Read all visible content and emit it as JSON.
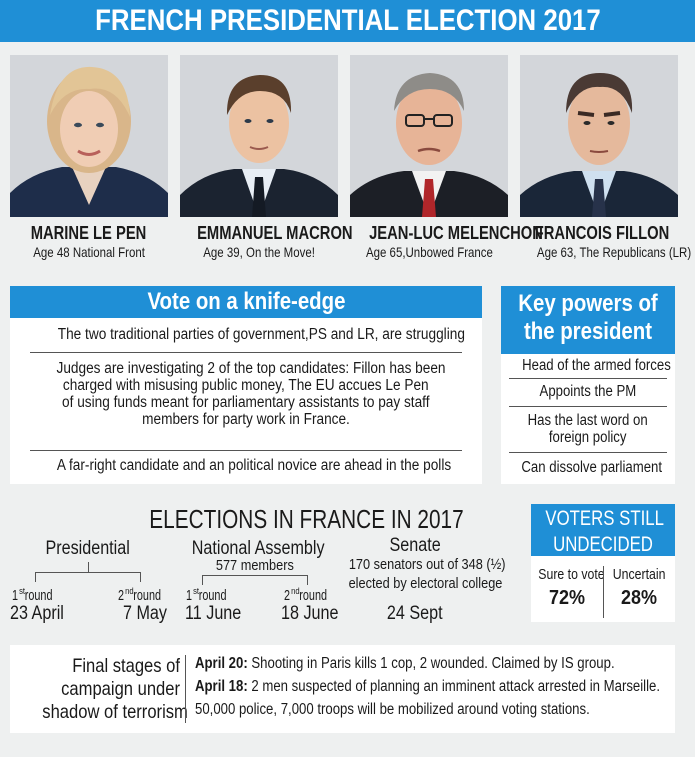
{
  "title": "FRENCH PRESIDENTIAL ELECTION 2017",
  "candidates": [
    {
      "name": "MARINE LE PEN",
      "detail": "Age 48 National Front"
    },
    {
      "name": "EMMANUEL MACRON",
      "detail": "Age 39, On the Move!"
    },
    {
      "name": "JEAN-LUC MELENCHON",
      "detail": "Age 65,Unbowed France"
    },
    {
      "name": "FRANCOIS FILLON",
      "detail": "Age 63, The Republicans (LR)"
    }
  ],
  "knife_edge": {
    "heading": "Vote on a knife-edge",
    "item1": "The two traditional parties of government,PS and LR, are struggling",
    "item2_lines": [
      "Judges are investigating 2 of the top candidates: Fillon has been",
      "charged with misusing public money, The EU accues Le Pen",
      "of using funds meant for parliamentary assistants to pay staff",
      "members for party work in France."
    ],
    "item3": "A far-right candidate and an political novice are ahead in the polls"
  },
  "key_powers": {
    "heading_lines": [
      "Key powers of",
      "the president"
    ],
    "item1": "Head of the armed forces",
    "item2": "Appoints the PM",
    "item3_lines": [
      "Has the last word on",
      "foreign policy"
    ],
    "item4": "Can dissolve parliament"
  },
  "elections": {
    "heading": "ELECTIONS IN FRANCE IN 2017",
    "presidential": {
      "label": "Presidential",
      "r1_num": "1",
      "r1_sup": "st",
      "r1_word": "round",
      "r1_date": "23 April",
      "r2_num": "2",
      "r2_sup": "nd",
      "r2_word": "round",
      "r2_date": "7 May"
    },
    "assembly": {
      "label": "National Assembly",
      "members": "577 members",
      "r1_num": "1",
      "r1_sup": "st",
      "r1_word": "round",
      "r1_date": "11 June",
      "r2_num": "2",
      "r2_sup": "nd",
      "r2_word": "round",
      "r2_date": "18 June"
    },
    "senate": {
      "label": "Senate",
      "line1": "170 senators out of 348 (½)",
      "line2": "elected by electoral college",
      "date": "24 Sept"
    }
  },
  "undecided": {
    "heading_lines": [
      "VOTERS STILL",
      "UNDECIDED"
    ],
    "sure_label": "Sure to vote",
    "sure_value": "72%",
    "uncertain_label": "Uncertain",
    "uncertain_value": "28%"
  },
  "terrorism": {
    "heading_lines": [
      "Final stages of",
      "campaign under",
      "shadow of terrorism"
    ],
    "event1_date": "April 20:",
    "event1_text": " Shooting in Paris kills 1 cop, 2 wounded. Claimed by IS group.",
    "event2_date": "April 18:",
    "event2_text": " 2 men suspected of planning an imminent attack arrested in Marseille.",
    "event3_text": "50,000 police, 7,000 troops will be mobilized around voting stations."
  },
  "colors": {
    "accent": "#1f8fd6",
    "background": "#eef0f0",
    "panel": "#ffffff",
    "text": "#1a1a1a"
  }
}
